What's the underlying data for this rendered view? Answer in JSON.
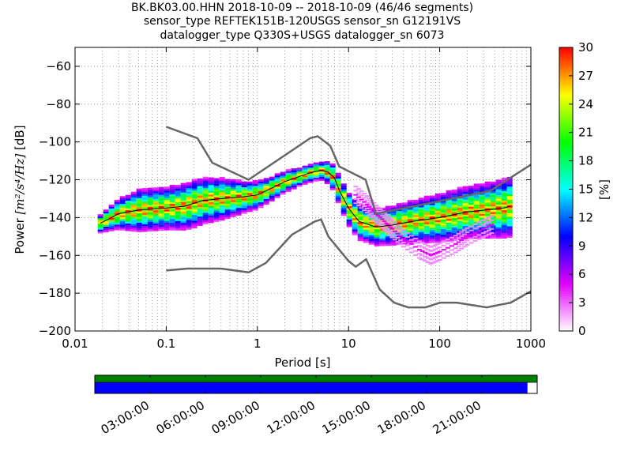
{
  "chart_data": {
    "type": "heatmap",
    "title_lines": [
      "BK.BK03.00.HHN   2018-10-09 -- 2018-10-09  (46/46 segments)",
      "sensor_type REFTEK151B-120USGS sensor_sn G12191VS",
      "datalogger_type Q330S+USGS datalogger_sn 6073"
    ],
    "xlabel": "Period [s]",
    "ylabel_prefix": "Power ",
    "ylabel_math": "[m²/s⁴/Hz]",
    "ylabel_suffix": " [dB]",
    "xscale": "log",
    "xlim": [
      0.01,
      1000
    ],
    "ylim": [
      -200,
      -50
    ],
    "xticks": [
      {
        "v": 0.01,
        "label": "0.01"
      },
      {
        "v": 0.1,
        "label": "0.1"
      },
      {
        "v": 1,
        "label": "1"
      },
      {
        "v": 10,
        "label": "10"
      },
      {
        "v": 100,
        "label": "100"
      },
      {
        "v": 1000,
        "label": "1000"
      }
    ],
    "yticks": [
      {
        "v": -60,
        "label": "−60"
      },
      {
        "v": -80,
        "label": "−80"
      },
      {
        "v": -100,
        "label": "−100"
      },
      {
        "v": -120,
        "label": "−120"
      },
      {
        "v": -140,
        "label": "−140"
      },
      {
        "v": -160,
        "label": "−160"
      },
      {
        "v": -180,
        "label": "−180"
      },
      {
        "v": -200,
        "label": "−200"
      }
    ],
    "grid": "dotted",
    "noise_models": [
      {
        "points": [
          [
            0.1,
            -92
          ],
          [
            0.22,
            -98
          ],
          [
            0.32,
            -111
          ],
          [
            0.8,
            -120
          ],
          [
            3.8,
            -98
          ],
          [
            4.6,
            -97
          ],
          [
            6.3,
            -102
          ],
          [
            7.9,
            -113
          ],
          [
            15.4,
            -120
          ],
          [
            20,
            -138
          ],
          [
            354,
            -126
          ],
          [
            1000,
            -112
          ]
        ]
      },
      {
        "points": [
          [
            0.1,
            -168
          ],
          [
            0.17,
            -167
          ],
          [
            0.4,
            -167
          ],
          [
            0.8,
            -169
          ],
          [
            1.24,
            -164
          ],
          [
            2.4,
            -149
          ],
          [
            4.3,
            -142
          ],
          [
            5,
            -141
          ],
          [
            6,
            -150
          ],
          [
            10,
            -163
          ],
          [
            12,
            -166
          ],
          [
            15.6,
            -162
          ],
          [
            21.9,
            -178
          ],
          [
            31.6,
            -185
          ],
          [
            45,
            -187.5
          ],
          [
            70,
            -187.5
          ],
          [
            101,
            -185
          ],
          [
            154,
            -185
          ],
          [
            328,
            -187.5
          ],
          [
            600,
            -185
          ],
          [
            1000,
            -179
          ]
        ]
      }
    ],
    "mode_trace": [
      [
        0.019,
        -143
      ],
      [
        0.03,
        -138
      ],
      [
        0.05,
        -136
      ],
      [
        0.1,
        -135
      ],
      [
        0.16,
        -134
      ],
      [
        0.25,
        -131
      ],
      [
        0.4,
        -130
      ],
      [
        0.7,
        -129
      ],
      [
        1,
        -128
      ],
      [
        1.5,
        -124
      ],
      [
        2,
        -121
      ],
      [
        3,
        -118
      ],
      [
        4,
        -116
      ],
      [
        5,
        -115
      ],
      [
        6,
        -116
      ],
      [
        7,
        -119
      ],
      [
        8,
        -126
      ],
      [
        10,
        -135
      ],
      [
        13,
        -142
      ],
      [
        20,
        -145
      ],
      [
        30,
        -144
      ],
      [
        50,
        -142
      ],
      [
        100,
        -140
      ],
      [
        200,
        -137
      ],
      [
        500,
        -135
      ],
      [
        600,
        -134
      ]
    ],
    "spread_db": [
      [
        0.019,
        3
      ],
      [
        0.03,
        5
      ],
      [
        0.05,
        7
      ],
      [
        0.1,
        7
      ],
      [
        0.2,
        8
      ],
      [
        0.4,
        7
      ],
      [
        0.8,
        5
      ],
      [
        1.5,
        4
      ],
      [
        3,
        3
      ],
      [
        5,
        3
      ],
      [
        8,
        5
      ],
      [
        12,
        6
      ],
      [
        20,
        6
      ],
      [
        50,
        7
      ],
      [
        100,
        8
      ],
      [
        300,
        9
      ],
      [
        600,
        10
      ]
    ],
    "scatter_branch": [
      [
        12,
        -128
      ],
      [
        16,
        -133
      ],
      [
        20,
        -138
      ],
      [
        25,
        -142
      ],
      [
        30,
        -146
      ],
      [
        40,
        -151
      ],
      [
        60,
        -157
      ],
      [
        80,
        -160
      ],
      [
        100,
        -158
      ],
      [
        150,
        -154
      ],
      [
        200,
        -150
      ],
      [
        300,
        -146
      ],
      [
        400,
        -143
      ]
    ],
    "colorbar": {
      "label": "[%]",
      "range": [
        0,
        30
      ],
      "ticks": [
        {
          "v": 0,
          "label": "0"
        },
        {
          "v": 3,
          "label": "3"
        },
        {
          "v": 6,
          "label": "6"
        },
        {
          "v": 9,
          "label": "9"
        },
        {
          "v": 12,
          "label": "12"
        },
        {
          "v": 15,
          "label": "15"
        },
        {
          "v": 18,
          "label": "18"
        },
        {
          "v": 21,
          "label": "21"
        },
        {
          "v": 24,
          "label": "24"
        },
        {
          "v": 27,
          "label": "27"
        },
        {
          "v": 30,
          "label": "30"
        }
      ],
      "colors": [
        "#ffffff",
        "#e400ff",
        "#0000ff",
        "#00ffff",
        "#00ff00",
        "#ffff00",
        "#ff0000"
      ]
    },
    "coverage": {
      "time_labels": [
        "03:00:00",
        "06:00:00",
        "09:00:00",
        "12:00:00",
        "15:00:00",
        "18:00:00",
        "21:00:00"
      ],
      "tick_hours": [
        3,
        6,
        9,
        12,
        15,
        18,
        21
      ],
      "data_fraction": 0.978,
      "colors": {
        "gaps_bar": "#008000",
        "data_bar": "#0000ff"
      }
    }
  }
}
